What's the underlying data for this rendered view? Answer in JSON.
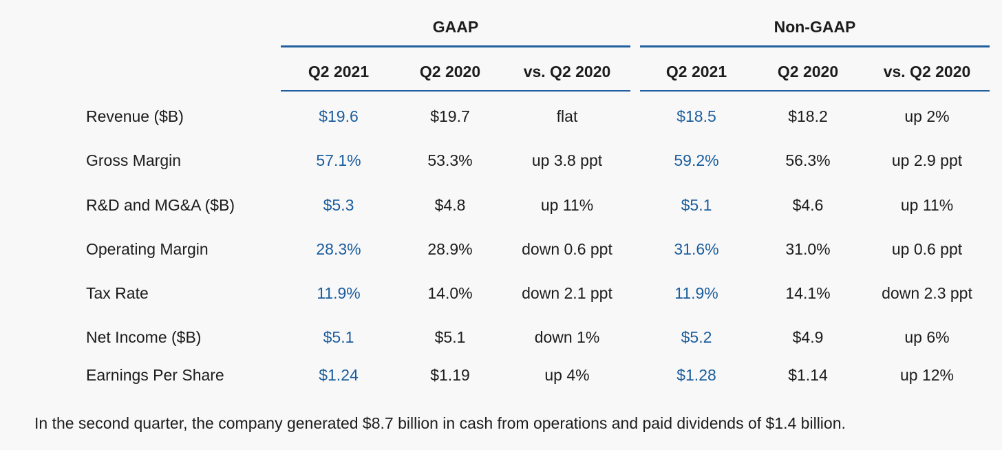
{
  "groups": {
    "gaap": "GAAP",
    "non_gaap": "Non-GAAP"
  },
  "columns": {
    "gaap": [
      "Q2 2021",
      "Q2 2020",
      "vs. Q2 2020"
    ],
    "non_gaap": [
      "Q2 2021",
      "Q2 2020",
      "vs. Q2 2020"
    ]
  },
  "rows": [
    {
      "label": "Revenue ($B)",
      "gaap": [
        "$19.6",
        "$19.7",
        "flat"
      ],
      "non_gaap": [
        "$18.5",
        "$18.2",
        "up 2%"
      ]
    },
    {
      "label": "Gross Margin",
      "gaap": [
        "57.1%",
        "53.3%",
        "up 3.8 ppt"
      ],
      "non_gaap": [
        "59.2%",
        "56.3%",
        "up 2.9 ppt"
      ]
    },
    {
      "label": "R&D and MG&A ($B)",
      "gaap": [
        "$5.3",
        "$4.8",
        "up 11%"
      ],
      "non_gaap": [
        "$5.1",
        "$4.6",
        "up 11%"
      ]
    },
    {
      "label": "Operating Margin",
      "gaap": [
        "28.3%",
        "28.9%",
        "down 0.6 ppt"
      ],
      "non_gaap": [
        "31.6%",
        "31.0%",
        "up 0.6 ppt"
      ]
    },
    {
      "label": "Tax Rate",
      "gaap": [
        "11.9%",
        "14.0%",
        "down 2.1 ppt"
      ],
      "non_gaap": [
        "11.9%",
        "14.1%",
        "down 2.3 ppt"
      ]
    },
    {
      "label": "Net Income ($B)",
      "gaap": [
        "$5.1",
        "$5.1",
        "down 1%"
      ],
      "non_gaap": [
        "$5.2",
        "$4.9",
        "up 6%"
      ]
    },
    {
      "label": "Earnings Per Share",
      "gaap": [
        "$1.24",
        "$1.19",
        "up 4%"
      ],
      "non_gaap": [
        "$1.28",
        "$1.14",
        "up 12%"
      ]
    }
  ],
  "footnote": "In the second quarter, the company generated $8.7 billion in cash from operations and paid dividends of $1.4 billion.",
  "colors": {
    "accent": "#1a5d9c",
    "rule": "#1f5f9e",
    "text": "#1c1c1c",
    "background": "#f8f8f9"
  }
}
